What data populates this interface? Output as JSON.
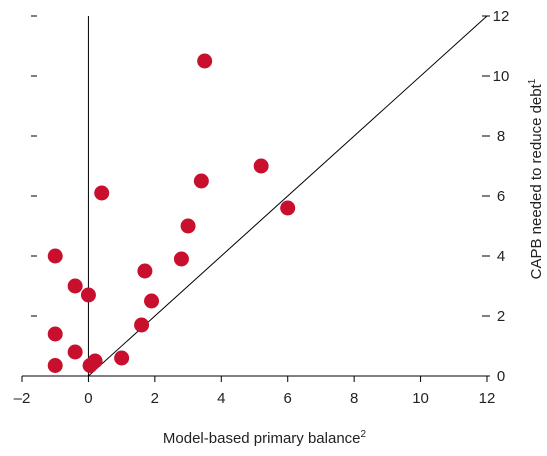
{
  "chart_data": {
    "type": "scatter",
    "title": "",
    "xlabel": "Model-based primary balance",
    "xlabel_superscript": "2",
    "ylabel": "CAPB needed to reduce debt",
    "ylabel_superscript": "1",
    "xlim": [
      -2,
      12
    ],
    "ylim": [
      0,
      12
    ],
    "x_ticks": [
      -2,
      0,
      2,
      4,
      6,
      8,
      10,
      12
    ],
    "y_ticks": [
      0,
      2,
      4,
      6,
      8,
      10,
      12
    ],
    "x_tick_labels": [
      "–2",
      "0",
      "2",
      "4",
      "6",
      "8",
      "10",
      "12"
    ],
    "y_tick_labels": [
      "0",
      "2",
      "4",
      "6",
      "8",
      "10",
      "12"
    ],
    "grid": false,
    "y_axis_side": "right",
    "reference_line": "45-degree line (y = x)",
    "marker_color": "#c8102e",
    "points": [
      {
        "x": 3.5,
        "y": 10.5
      },
      {
        "x": 5.2,
        "y": 7.0
      },
      {
        "x": 3.4,
        "y": 6.5
      },
      {
        "x": 0.4,
        "y": 6.1
      },
      {
        "x": 6.0,
        "y": 5.6
      },
      {
        "x": 3.0,
        "y": 5.0
      },
      {
        "x": -1.0,
        "y": 4.0
      },
      {
        "x": 2.8,
        "y": 3.9
      },
      {
        "x": 1.7,
        "y": 3.5
      },
      {
        "x": -0.4,
        "y": 3.0
      },
      {
        "x": 0.0,
        "y": 2.7
      },
      {
        "x": 1.9,
        "y": 2.5
      },
      {
        "x": 1.6,
        "y": 1.7
      },
      {
        "x": -1.0,
        "y": 1.4
      },
      {
        "x": -0.4,
        "y": 0.8
      },
      {
        "x": 1.0,
        "y": 0.6
      },
      {
        "x": 0.2,
        "y": 0.5
      },
      {
        "x": 0.05,
        "y": 0.35
      },
      {
        "x": -1.0,
        "y": 0.35
      }
    ]
  }
}
